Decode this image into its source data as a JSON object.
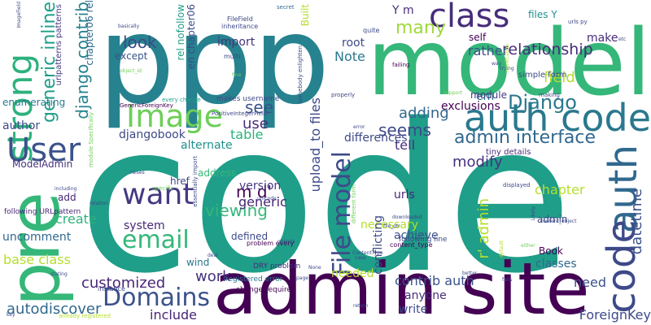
{
  "words": [
    {
      "text": "code",
      "color": "#1f9e89"
    },
    {
      "text": "ppp",
      "color": "#26828e"
    },
    {
      "text": "model",
      "color": "#35b779"
    },
    {
      "text": "admin site",
      "color": "#440154"
    },
    {
      "text": "pre",
      "color": "#35b779"
    },
    {
      "text": "auth code",
      "color": "#2a788e"
    },
    {
      "text": "auth",
      "color": "#31688e"
    },
    {
      "text": "code",
      "color": "#3e4989"
    },
    {
      "text": "strong",
      "color": "#2db27d"
    },
    {
      "text": "class",
      "color": "#472d7b"
    },
    {
      "text": "Image",
      "color": "#6ece58"
    },
    {
      "text": "User",
      "color": "#3b528b"
    },
    {
      "text": "File model",
      "color": "#3e4989"
    },
    {
      "text": "want",
      "color": "#443983"
    },
    {
      "text": "Domains",
      "color": "#3b528b"
    },
    {
      "text": "email",
      "color": "#35b779"
    },
    {
      "text": "admin interface",
      "color": "#31688e"
    },
    {
      "text": "customized",
      "color": "#482677"
    },
    {
      "text": "work",
      "color": "#46327e"
    },
    {
      "text": "relationship",
      "color": "#472d7b"
    },
    {
      "text": "Django",
      "color": "#2a788e"
    },
    {
      "text": "seems",
      "color": "#3e4989"
    },
    {
      "text": "many",
      "color": "#a0da39"
    },
    {
      "text": "field",
      "color": "#b5de2b"
    },
    {
      "text": "see",
      "color": "#3b528b"
    },
    {
      "text": "look",
      "color": "#3e4989"
    },
    {
      "text": "generic inline",
      "color": "#1f9e89"
    },
    {
      "text": "django contrib",
      "color": "#26828e"
    },
    {
      "text": "viewing",
      "color": "#35b779"
    },
    {
      "text": "modify",
      "color": "#46327e"
    },
    {
      "text": "create",
      "color": "#2db27d"
    },
    {
      "text": "datetime",
      "color": "#3b528b"
    },
    {
      "text": "autodiscover",
      "color": "#31688e"
    },
    {
      "text": "include",
      "color": "#482677"
    },
    {
      "text": "ForeignKey",
      "color": "#3e4989"
    },
    {
      "text": "m d'",
      "color": "#440154"
    },
    {
      "text": "r' admin",
      "color": "#b5de2b"
    },
    {
      "text": "upload_to files",
      "color": "#3e4989"
    },
    {
      "text": "base class",
      "color": "#b5de2b"
    },
    {
      "text": "contrib auth",
      "color": "#3b528b"
    },
    {
      "text": "need",
      "color": "#3b528b"
    },
    {
      "text": "anyone",
      "color": "#472d7b"
    },
    {
      "text": "write",
      "color": "#3e4989"
    },
    {
      "text": "adding",
      "color": "#31688e"
    },
    {
      "text": "table",
      "color": "#2db27d"
    },
    {
      "text": "use",
      "color": "#472d7b"
    },
    {
      "text": "Note",
      "color": "#2a788e"
    },
    {
      "text": "exclusions",
      "color": "#440154"
    },
    {
      "text": "em",
      "color": "#2a788e"
    },
    {
      "text": "module",
      "color": "#443983"
    },
    {
      "text": "rather",
      "color": "#3b528b"
    },
    {
      "text": "import",
      "color": "#46327e"
    },
    {
      "text": "root",
      "color": "#3e4989"
    },
    {
      "text": "make",
      "color": "#472d7b"
    },
    {
      "text": "uncomment",
      "color": "#31688e"
    },
    {
      "text": "system",
      "color": "#482677"
    },
    {
      "text": "alternate",
      "color": "#21918c"
    },
    {
      "text": "djangobook",
      "color": "#3e4989"
    },
    {
      "text": "author",
      "color": "#3e4989"
    },
    {
      "text": "enumerating",
      "color": "#2a788e"
    },
    {
      "text": "ModelAdmin",
      "color": "#46327e"
    },
    {
      "text": "add",
      "color": "#482677"
    },
    {
      "text": "chapter",
      "color": "#b5de2b"
    },
    {
      "text": "tell",
      "color": "#472d7b"
    },
    {
      "text": "differences",
      "color": "#3e4989"
    },
    {
      "text": "necessary",
      "color": "#b5de2b"
    },
    {
      "text": "achieve",
      "color": "#3b528b"
    },
    {
      "text": "classes",
      "color": "#31688e"
    },
    {
      "text": "needed",
      "color": "#b5de2b"
    },
    {
      "text": "Book",
      "color": "#440154"
    },
    {
      "text": "version",
      "color": "#443983"
    },
    {
      "text": "defined",
      "color": "#3e4989"
    },
    {
      "text": "generic",
      "color": "#482677"
    },
    {
      "text": "urls",
      "color": "#482677"
    },
    {
      "text": "address",
      "color": "#35b779"
    },
    {
      "text": "href",
      "color": "#3e4989"
    },
    {
      "text": "wind",
      "color": "#2a788e"
    },
    {
      "text": "except",
      "color": "#3b528b"
    },
    {
      "text": "files Y",
      "color": "#21918c"
    },
    {
      "text": "self",
      "color": "#440154"
    },
    {
      "text": "admin",
      "color": "#3e4989"
    },
    {
      "text": "conflicting",
      "color": "#3e4989"
    },
    {
      "text": "Y m",
      "color": "#472d7b"
    },
    {
      "text": "en chapter06",
      "color": "#3e4989"
    },
    {
      "text": "rel nofollow",
      "color": "#1f9e89"
    },
    {
      "text": "chapter06 rel",
      "color": "#31688e"
    },
    {
      "text": "Built",
      "color": "#b5de2b"
    },
    {
      "text": "urlpatterns patterns",
      "color": "#443983"
    },
    {
      "text": "tiny details",
      "color": "#472d7b"
    },
    {
      "text": "simple form",
      "color": "#3e4989"
    },
    {
      "text": "makes username",
      "color": "#3e4989"
    },
    {
      "text": "following URLpattern",
      "color": "#482677"
    },
    {
      "text": "DRY problem",
      "color": "#472d7b"
    },
    {
      "text": "change requires",
      "color": "#440154"
    },
    {
      "text": "registered error",
      "color": "#2a788e"
    },
    {
      "text": "instance",
      "color": "#3e4989"
    },
    {
      "text": "following line",
      "color": "#3e4989"
    },
    {
      "text": "content_type",
      "color": "#440154"
    },
    {
      "text": "problem every",
      "color": "#440154"
    },
    {
      "text": "inheritance",
      "color": "#3e4989"
    },
    {
      "text": "quite",
      "color": "#3e4989"
    },
    {
      "text": "FileField",
      "color": "#3e4989"
    },
    {
      "text": "multi",
      "color": "#3e4989"
    },
    {
      "text": "GenericForeignKey",
      "color": "#440154"
    },
    {
      "text": "PositiveIntegerField",
      "color": "#3e4989"
    },
    {
      "text": "already registered",
      "color": "#b5de2b"
    },
    {
      "text": "secret",
      "color": "#31688e"
    },
    {
      "text": "failing",
      "color": "#440154"
    },
    {
      "text": "urls py",
      "color": "#3e4989"
    },
    {
      "text": "properly",
      "color": "#3e4989"
    },
    {
      "text": "making",
      "color": "#3e4989"
    },
    {
      "text": "key",
      "color": "#3e4989"
    },
    {
      "text": "including",
      "color": "#3e4989"
    },
    {
      "text": "displayed",
      "color": "#3e4989"
    },
    {
      "text": "downloaded",
      "color": "#3e4989"
    },
    {
      "text": "specific",
      "color": "#6ece58"
    },
    {
      "text": "every change",
      "color": "#1f9e89"
    },
    {
      "text": "relation",
      "color": "#3e4989"
    },
    {
      "text": "objects",
      "color": "#3e4989"
    },
    {
      "text": "page",
      "color": "#3e4989"
    },
    {
      "text": "stating",
      "color": "#3e4989"
    },
    {
      "text": "either",
      "color": "#6ece58"
    },
    {
      "text": "trying",
      "color": "#3e4989"
    },
    {
      "text": "better",
      "color": "#3e4989"
    },
    {
      "text": "None",
      "color": "#3e4989"
    },
    {
      "text": "basically",
      "color": "#3e4989"
    },
    {
      "text": "fine",
      "color": "#6ece58"
    },
    {
      "text": "object_id",
      "color": "#6ece58"
    },
    {
      "text": "ContentType",
      "color": "#3e4989"
    },
    {
      "text": "fails",
      "color": "#3e4989"
    },
    {
      "text": "case",
      "color": "#3e4989"
    },
    {
      "text": "somebody enlighten",
      "color": "#3e4989"
    },
    {
      "text": "essentially import",
      "color": "#3e4989"
    },
    {
      "text": "different form",
      "color": "#6ece58"
    },
    {
      "text": "module Specifically",
      "color": "#6ece58"
    },
    {
      "text": "ImageField",
      "color": "#3e4989"
    },
    {
      "text": "unicode",
      "color": "#3e4989"
    },
    {
      "text": "file_ptr",
      "color": "#3e4989"
    },
    {
      "text": "content_object",
      "color": "#3e4989"
    },
    {
      "text": "clarification",
      "color": "#b5de2b"
    },
    {
      "text": "support",
      "color": "#6ece58"
    },
    {
      "text": "way",
      "color": "#3e4989"
    },
    {
      "text": "raises",
      "color": "#3e4989"
    },
    {
      "text": "etc",
      "color": "#3e4989"
    },
    {
      "text": "error",
      "color": "#3e4989"
    },
    {
      "text": "default",
      "color": "#b5de2b"
    },
    {
      "text": "Likely",
      "color": "#3e4989"
    },
    {
      "text": "return",
      "color": "#3e4989"
    },
    {
      "text": "deal",
      "color": "#3e4989"
    }
  ]
}
